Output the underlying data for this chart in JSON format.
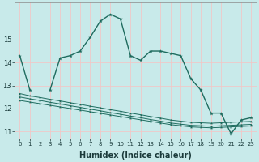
{
  "title": "",
  "xlabel": "Humidex (Indice chaleur)",
  "bg_color": "#c8eaea",
  "grid_color_major": "#f0c8c8",
  "grid_color_minor": "#dce8e8",
  "line_color": "#1e6b5e",
  "x_values": [
    0,
    1,
    2,
    3,
    4,
    5,
    6,
    7,
    8,
    9,
    10,
    11,
    12,
    13,
    14,
    15,
    16,
    17,
    18,
    19,
    20,
    21,
    22,
    23
  ],
  "line1": [
    14.3,
    12.8,
    null,
    12.8,
    14.2,
    14.3,
    14.5,
    15.1,
    15.8,
    16.1,
    15.9,
    14.3,
    14.1,
    14.5,
    14.5,
    14.4,
    14.3,
    13.3,
    12.8,
    11.8,
    11.8,
    10.9,
    11.5,
    11.6
  ],
  "line2": [
    12.65,
    12.55,
    12.48,
    12.4,
    12.33,
    12.25,
    12.18,
    12.1,
    12.03,
    11.95,
    11.88,
    11.8,
    11.73,
    11.65,
    11.58,
    11.5,
    11.45,
    11.4,
    11.38,
    11.36,
    11.38,
    11.4,
    11.42,
    11.44
  ],
  "line3": [
    12.5,
    12.42,
    12.35,
    12.27,
    12.2,
    12.12,
    12.05,
    11.97,
    11.9,
    11.82,
    11.75,
    11.67,
    11.6,
    11.52,
    11.45,
    11.37,
    11.32,
    11.27,
    11.25,
    11.23,
    11.25,
    11.27,
    11.29,
    11.31
  ],
  "line4": [
    12.35,
    12.28,
    12.21,
    12.14,
    12.07,
    12.0,
    11.93,
    11.86,
    11.79,
    11.72,
    11.65,
    11.58,
    11.51,
    11.44,
    11.37,
    11.3,
    11.25,
    11.2,
    11.18,
    11.16,
    11.18,
    11.2,
    11.22,
    11.24
  ],
  "ylim": [
    10.7,
    16.6
  ],
  "xlim": [
    -0.5,
    23.5
  ],
  "yticks": [
    11,
    12,
    13,
    14,
    15
  ],
  "xticks": [
    0,
    1,
    2,
    3,
    4,
    5,
    6,
    7,
    8,
    9,
    10,
    11,
    12,
    13,
    14,
    15,
    16,
    17,
    18,
    19,
    20,
    21,
    22,
    23
  ],
  "xlabel_fontsize": 7,
  "tick_fontsize": 5,
  "ylabel_fontsize": 6
}
